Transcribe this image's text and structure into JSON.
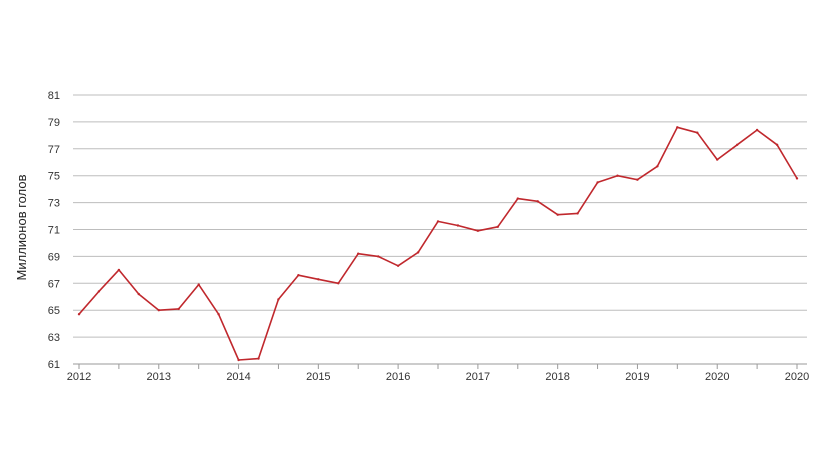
{
  "chart_data": {
    "type": "line",
    "title": "",
    "ylabel": "Миллионов голов",
    "xlabel": "",
    "ylim": [
      61,
      81
    ],
    "y_ticks": [
      61,
      63,
      65,
      67,
      69,
      71,
      73,
      75,
      77,
      79,
      81
    ],
    "x_tick_labels": [
      "2012",
      "2013",
      "2014",
      "2015",
      "2016",
      "2017",
      "2018",
      "2019",
      "2020",
      "2020"
    ],
    "x_tick_positions": [
      2012,
      2013,
      2014,
      2015,
      2016,
      2017,
      2018,
      2019,
      2020,
      2021
    ],
    "xlim": [
      2012,
      2021
    ],
    "grid": true,
    "series": [
      {
        "color": "#c0282d",
        "x": [
          2012.0,
          2012.25,
          2012.5,
          2012.75,
          2013.0,
          2013.25,
          2013.5,
          2013.75,
          2014.0,
          2014.25,
          2014.5,
          2014.75,
          2015.0,
          2015.25,
          2015.5,
          2015.75,
          2016.0,
          2016.25,
          2016.5,
          2016.75,
          2017.0,
          2017.25,
          2017.5,
          2017.75,
          2018.0,
          2018.25,
          2018.5,
          2018.75,
          2019.0,
          2019.25,
          2019.5,
          2019.75,
          2020.0,
          2020.25,
          2020.5,
          2020.75,
          2021.0
        ],
        "values": [
          64.7,
          66.4,
          68.0,
          66.2,
          65.0,
          65.1,
          66.9,
          64.7,
          61.3,
          61.4,
          65.8,
          67.6,
          67.3,
          67.0,
          69.2,
          69.0,
          68.3,
          69.3,
          71.6,
          71.3,
          70.9,
          71.2,
          73.3,
          73.1,
          72.1,
          72.2,
          74.5,
          75.0,
          74.7,
          75.7,
          78.6,
          78.2,
          76.2,
          77.3,
          78.4,
          77.3,
          74.8
        ]
      }
    ]
  }
}
